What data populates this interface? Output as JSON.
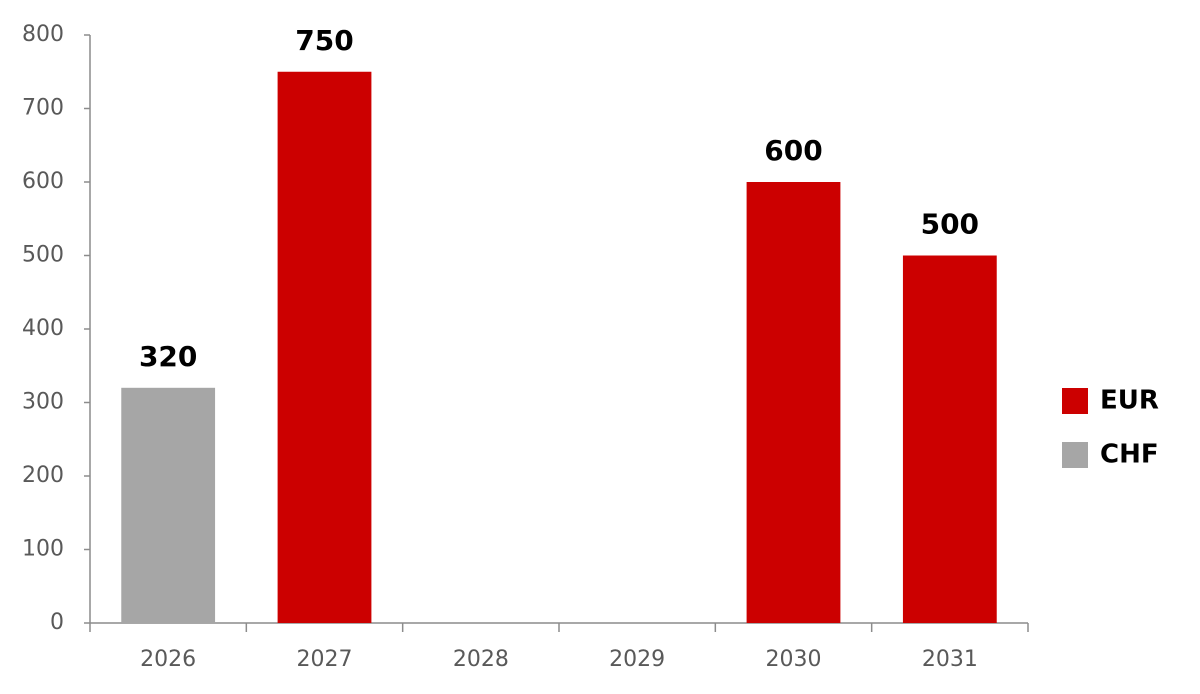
{
  "chart_data": {
    "type": "bar",
    "stacked": true,
    "categories": [
      "2026",
      "2027",
      "2028",
      "2029",
      "2030",
      "2031"
    ],
    "series": [
      {
        "name": "EUR",
        "color": "#cc0000",
        "values": [
          null,
          750,
          null,
          null,
          600,
          500
        ]
      },
      {
        "name": "CHF",
        "color": "#a6a6a6",
        "values": [
          320,
          null,
          null,
          null,
          null,
          null
        ]
      }
    ],
    "ylim": [
      0,
      800
    ],
    "yticks": [
      0,
      100,
      200,
      300,
      400,
      500,
      600,
      700,
      800
    ],
    "grid": false,
    "legend": "right",
    "data_labels": true
  }
}
